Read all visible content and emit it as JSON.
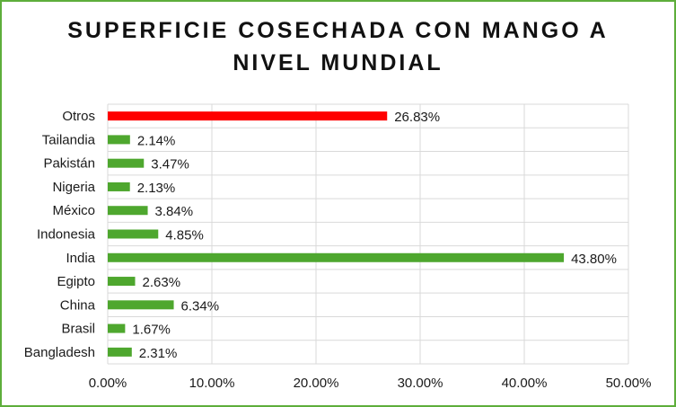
{
  "chart_data": {
    "type": "bar",
    "orientation": "horizontal",
    "title": [
      "SUPERFICIE COSECHADA CON MANGO A",
      "NIVEL MUNDIAL"
    ],
    "categories": [
      "Otros",
      "Tailandia",
      "Pakistán",
      "Nigeria",
      "México",
      "Indonesia",
      "India",
      "Egipto",
      "China",
      "Brasil",
      "Bangladesh"
    ],
    "values": [
      26.83,
      2.14,
      3.47,
      2.13,
      3.84,
      4.85,
      43.8,
      2.63,
      6.34,
      1.67,
      2.31
    ],
    "data_labels": [
      "26.83%",
      "2.14%",
      "3.47%",
      "2.13%",
      "3.84%",
      "4.85%",
      "43.80%",
      "2.63%",
      "6.34%",
      "1.67%",
      "2.31%"
    ],
    "bar_colors": [
      "#ff0000",
      "#4ea72e",
      "#4ea72e",
      "#4ea72e",
      "#4ea72e",
      "#4ea72e",
      "#4ea72e",
      "#4ea72e",
      "#4ea72e",
      "#4ea72e",
      "#4ea72e"
    ],
    "xlim": [
      0,
      50
    ],
    "xticks": [
      0,
      10,
      20,
      30,
      40,
      50
    ],
    "xtick_labels": [
      "0.00%",
      "10.00%",
      "20.00%",
      "30.00%",
      "40.00%",
      "50.00%"
    ],
    "grid": true,
    "legend": "none"
  },
  "colors": {
    "border": "#5eae3b",
    "grid": "#d9d9d9",
    "highlight": "#ff0000",
    "bar": "#4ea72e"
  }
}
